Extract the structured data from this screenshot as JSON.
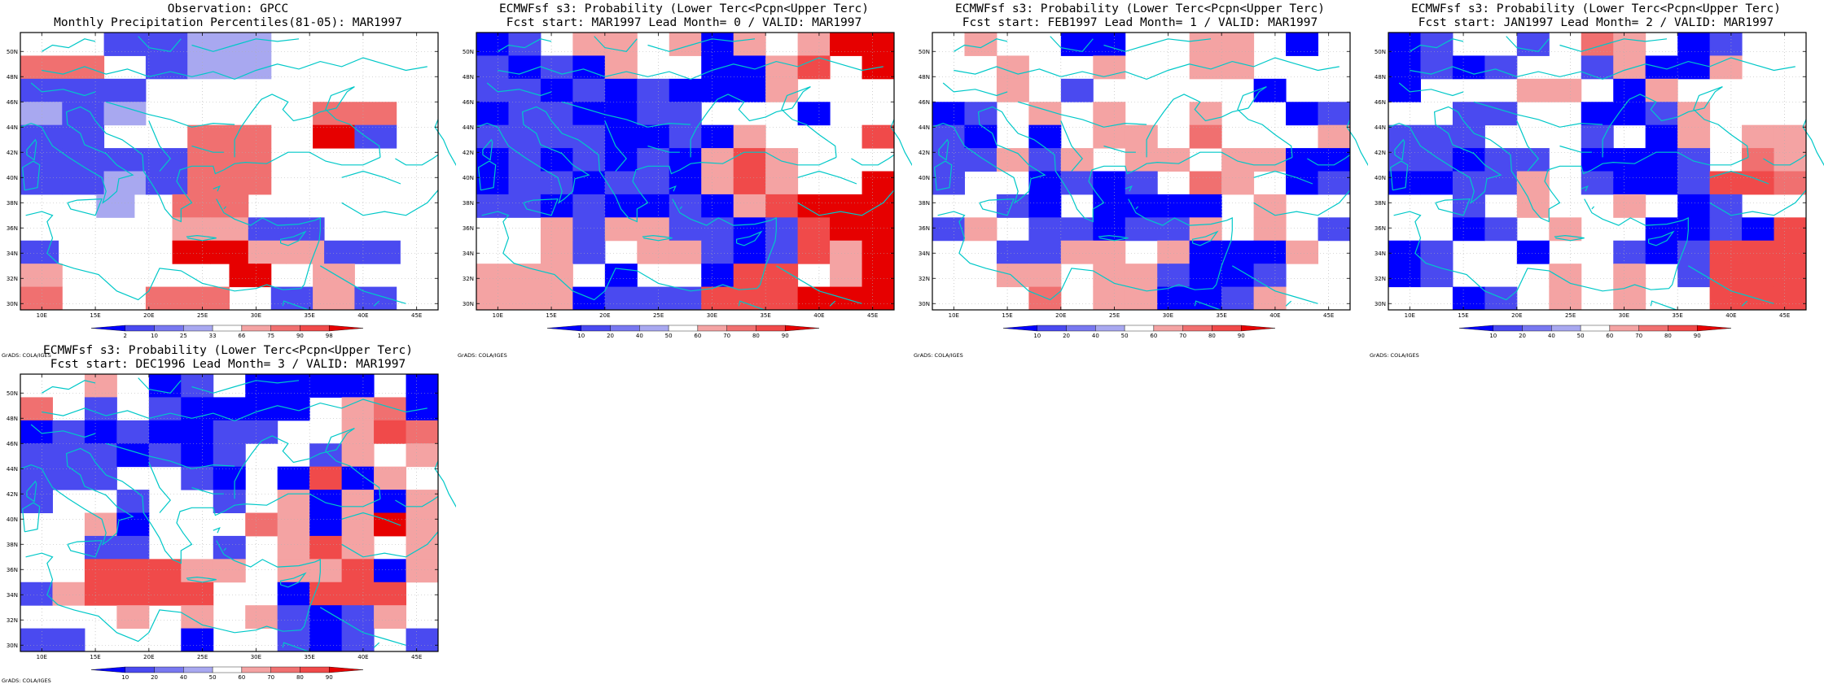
{
  "common": {
    "lat_labels": [
      "50N",
      "48N",
      "46N",
      "44N",
      "42N",
      "40N",
      "38N",
      "36N",
      "34N",
      "32N",
      "30N"
    ],
    "lon_labels": [
      "10E",
      "15E",
      "20E",
      "25E",
      "30E",
      "35E",
      "40E",
      "45E"
    ],
    "credit": "GrADS: COLA/IGES",
    "ecmwf_title": "ECMWFsf s3: Probability (Lower Terc<Pcpn<Upper Terc)",
    "legend_prob": [
      "10",
      "20",
      "40",
      "50",
      "60",
      "70",
      "80",
      "90"
    ],
    "legend_obs": [
      "2",
      "10",
      "25",
      "33",
      "66",
      "75",
      "90",
      "98"
    ],
    "colors": {
      "blue_dark": "#0000ff",
      "blue_mid": "#4a4af0",
      "blue_light": "#7878f0",
      "blue_pale": "#a8a8f0",
      "red_pale": "#f4a3a3",
      "red_light": "#f07070",
      "red_mid": "#f04a4a",
      "red_dark": "#e60000",
      "coast": "#00c8c8"
    }
  },
  "panels": [
    {
      "title1": "Observation: GPCC",
      "title2": "Monthly Precipitation Percentiles(81-05): MAR1997",
      "legend": "obs",
      "grid": [
        "..bbcc....",
        "rr.bcc....",
        "bbb.......",
        "cbc....rr.",
        "bb..rr.Rb.",
        "bbbbrr....",
        "bbcbrr....",
        "..c.rr.....",
        "....ssbb...",
        "b...RRssbb.",
        "s....R.s..",
        "r..rr.bsb."
      ]
    },
    {
      "title1": "ECMWFsf s3: Probability (Lower Terc<Pcpn<Upper Terc)",
      "title2": "Fcst start: MAR1997  Lead Month= 0 / VALID: MAR1997",
      "legend": "prob"
    },
    {
      "title1": "ECMWFsf s3: Probability (Lower Terc<Pcpn<Upper Terc)",
      "title2": "Fcst start: FEB1997  Lead Month= 1 / VALID: MAR1997",
      "legend": "prob"
    },
    {
      "title1": "ECMWFsf s3: Probability (Lower Terc<Pcpn<Upper Terc)",
      "title2": "Fcst start: JAN1997  Lead Month= 2 / VALID: MAR1997",
      "legend": "prob"
    },
    {
      "title1": "ECMWFsf s3: Probability (Lower Terc<Pcpn<Upper Terc)",
      "title2": "Fcst start: DEC1996  Lead Month= 3 / VALID: MAR1997",
      "legend": "prob"
    }
  ]
}
